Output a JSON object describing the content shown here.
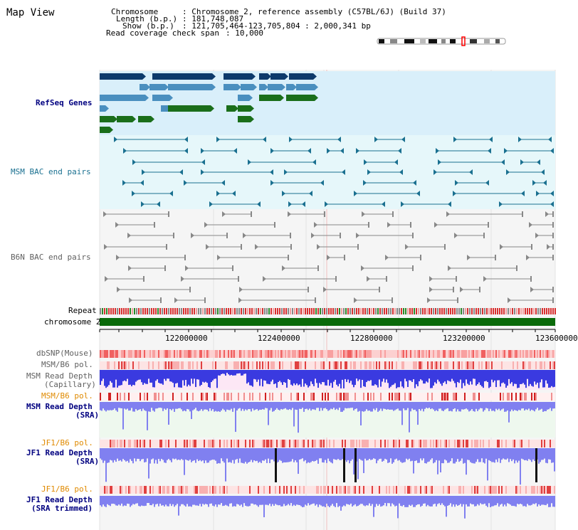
{
  "title": "Map View",
  "header": {
    "chromosome_key": "Chromosome",
    "chromosome_val": ": Chromosome 2, reference assembly (C57BL/6J) (Build 37)",
    "length_key": "Length (b.p.)",
    "length_val": ": 181,748,087",
    "show_key": "Show (b.p.)",
    "show_val": ": 121,705,464-123,705,804 : 2,000,341 bp",
    "coverage_key": "Read coverage check span",
    "coverage_val": ": 10,000"
  },
  "tracks": {
    "refseq": "RefSeq Genes",
    "msm_bac": "MSM BAC end pairs",
    "b6n_bac": "B6N BAC end pairs",
    "repeat": "Repeat",
    "chromosome": "chromosome 2",
    "dbsnp": "dbSNP(Mouse)",
    "msm_b6_pol": "MSM/B6 pol.",
    "msm_read_depth_cap_1": "MSM Read Depth",
    "msm_read_depth_cap_2": "(Capillary)",
    "msm_b6_pol_2": "MSM/B6 pol.",
    "msm_read_depth_sra_1": "MSM Read Depth",
    "msm_read_depth_sra_2": "(SRA)",
    "jf1_b6_pol": "JF1/B6 pol.",
    "jf1_read_depth_1": "JF1 Read Depth",
    "jf1_read_depth_2": "(SRA)",
    "jf1_b6_pol_2": "JF1/B6 pol.",
    "jf1_read_depth_trim_1": "JF1 Read Depth",
    "jf1_read_depth_trim_2": "(SRA trimmed)"
  },
  "axis": {
    "ticks": [
      "122000000",
      "122400000",
      "122800000",
      "123200000",
      "123600000"
    ]
  },
  "colors": {
    "refseq_bg": "#d9effa",
    "msm_bg": "#e6f7fa",
    "page_bg": "#f5f5f5",
    "gene_dark": "#0d3a6b",
    "gene_mid": "#4a8fbf",
    "gene_green": "#1a6e1a",
    "msm_bac": "#1a7090",
    "b6n_bac": "#888888",
    "chrom_bar": "#0a6a0a",
    "depth_blue": "#3a3ae0",
    "depth_light": "#8080f0",
    "label_blue": "#000080",
    "label_teal": "#1a7090",
    "label_orange": "#e08a00",
    "label_gray": "#606060"
  }
}
